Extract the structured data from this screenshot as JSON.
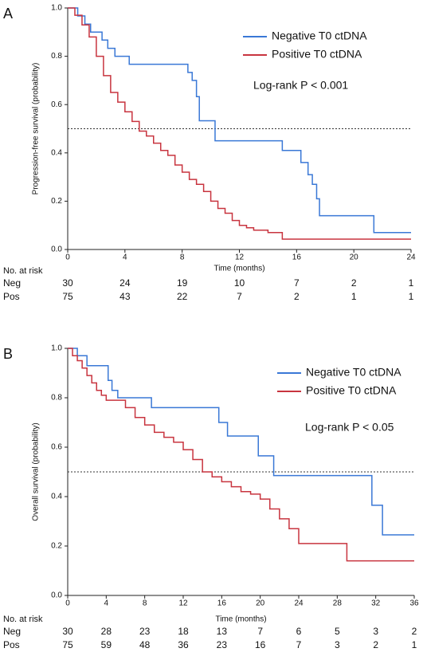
{
  "chart_data": [
    {
      "type": "line",
      "step": true,
      "panel": "A",
      "y_label": "Progression-free survival (probability)",
      "x_label": "Time (months)",
      "xlim": [
        0,
        24
      ],
      "xticks": [
        0,
        4,
        8,
        12,
        16,
        20,
        24
      ],
      "ylim": [
        0,
        1
      ],
      "yticks": [
        {
          "value": 0,
          "label": "0.0"
        },
        0.2,
        0.4,
        0.6,
        0.8,
        {
          "value": 1,
          "label": "1.0"
        }
      ],
      "reference_line": 0.5,
      "annotation": "Log-rank P < 0.001",
      "series": [
        {
          "name": "Negative T0 ctDNA",
          "color": "#3a78d6",
          "x": [
            0,
            0.7,
            1.2,
            1.6,
            2.4,
            2.8,
            3.3,
            4.3,
            8.4,
            8.7,
            9.0,
            9.2,
            10.3,
            15.0,
            16.3,
            16.8,
            17.1,
            17.4,
            17.6,
            21.4,
            24
          ],
          "values": [
            1.0,
            0.967,
            0.933,
            0.9,
            0.867,
            0.833,
            0.8,
            0.767,
            0.733,
            0.7,
            0.633,
            0.533,
            0.45,
            0.41,
            0.36,
            0.31,
            0.27,
            0.21,
            0.14,
            0.07,
            0.07
          ]
        },
        {
          "name": "Positive T0 ctDNA",
          "color": "#c8343f",
          "x": [
            0,
            0.5,
            1,
            1.5,
            2,
            2.5,
            3,
            3.5,
            4,
            4.5,
            5,
            5.5,
            6,
            6.5,
            7,
            7.5,
            8,
            8.5,
            9,
            9.5,
            10,
            10.5,
            11,
            11.5,
            12,
            12.5,
            13,
            14,
            15,
            24
          ],
          "values": [
            1,
            0.97,
            0.93,
            0.88,
            0.8,
            0.72,
            0.65,
            0.61,
            0.57,
            0.53,
            0.49,
            0.47,
            0.44,
            0.41,
            0.39,
            0.35,
            0.32,
            0.29,
            0.27,
            0.24,
            0.2,
            0.17,
            0.15,
            0.12,
            0.1,
            0.09,
            0.08,
            0.07,
            0.043,
            0.043
          ]
        }
      ],
      "risk_table": {
        "title": "No. at risk",
        "rows": [
          {
            "name": "Neg",
            "values": [
              30,
              24,
              19,
              10,
              7,
              2,
              1
            ]
          },
          {
            "name": "Pos",
            "values": [
              75,
              43,
              22,
              7,
              2,
              1,
              1
            ]
          }
        ]
      }
    },
    {
      "type": "line",
      "step": true,
      "panel": "B",
      "y_label": "Overall survival (probability)",
      "x_label": "Time (months)",
      "xlim": [
        0,
        36
      ],
      "xticks": [
        0,
        4,
        8,
        12,
        16,
        20,
        24,
        28,
        32,
        36
      ],
      "ylim": [
        0,
        1
      ],
      "yticks": [
        {
          "value": 0,
          "label": "0.0"
        },
        0.2,
        0.4,
        0.6,
        0.8,
        {
          "value": 1,
          "label": "1.0"
        }
      ],
      "reference_line": 0.5,
      "annotation": "Log-rank P < 0.05",
      "series": [
        {
          "name": "Negative T0 ctDNA",
          "color": "#3a78d6",
          "x": [
            0,
            1,
            2,
            4.2,
            4.6,
            5.2,
            8.7,
            15.7,
            16.6,
            19.8,
            21.4,
            31.6,
            32.7,
            36
          ],
          "values": [
            1,
            0.97,
            0.93,
            0.87,
            0.83,
            0.8,
            0.76,
            0.7,
            0.645,
            0.565,
            0.485,
            0.365,
            0.245,
            0.245
          ]
        },
        {
          "name": "Positive T0 ctDNA",
          "color": "#c8343f",
          "x": [
            0,
            0.5,
            1,
            1.5,
            2,
            2.5,
            3,
            3.5,
            4,
            5,
            6,
            7,
            8,
            9,
            10,
            11,
            12,
            13,
            14,
            15,
            16,
            17,
            18,
            19,
            20,
            21,
            22,
            23,
            24,
            29,
            36
          ],
          "values": [
            1,
            0.97,
            0.95,
            0.92,
            0.89,
            0.86,
            0.83,
            0.81,
            0.79,
            0.79,
            0.76,
            0.72,
            0.69,
            0.66,
            0.64,
            0.62,
            0.59,
            0.55,
            0.5,
            0.48,
            0.46,
            0.44,
            0.42,
            0.41,
            0.39,
            0.35,
            0.31,
            0.27,
            0.21,
            0.14,
            0.14
          ]
        }
      ],
      "risk_table": {
        "title": "No. at risk",
        "rows": [
          {
            "name": "Neg",
            "values": [
              30,
              28,
              23,
              18,
              13,
              7,
              6,
              5,
              3,
              2
            ]
          },
          {
            "name": "Pos",
            "values": [
              75,
              59,
              48,
              36,
              23,
              16,
              7,
              3,
              2,
              1
            ]
          }
        ]
      }
    }
  ]
}
